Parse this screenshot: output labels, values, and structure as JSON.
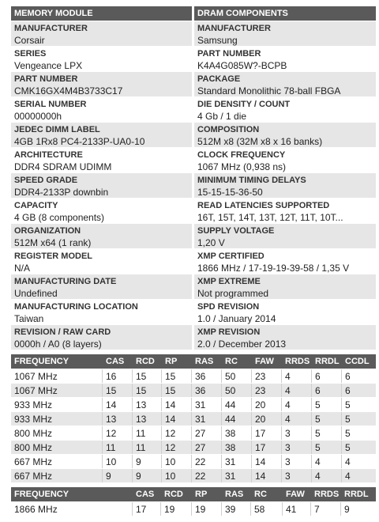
{
  "specs": {
    "left": {
      "title": "MEMORY MODULE",
      "items": [
        {
          "label": "MANUFACTURER",
          "value": "Corsair"
        },
        {
          "label": "SERIES",
          "value": "Vengeance LPX"
        },
        {
          "label": "PART NUMBER",
          "value": "CMK16GX4M4B3733C17"
        },
        {
          "label": "SERIAL NUMBER",
          "value": "00000000h"
        },
        {
          "label": "JEDEC DIMM LABEL",
          "value": "4GB 1Rx8 PC4-2133P-UA0-10"
        },
        {
          "label": "ARCHITECTURE",
          "value": "DDR4 SDRAM UDIMM"
        },
        {
          "label": "SPEED GRADE",
          "value": "DDR4-2133P downbin"
        },
        {
          "label": "CAPACITY",
          "value": "4 GB (8 components)"
        },
        {
          "label": "ORGANIZATION",
          "value": "512M x64 (1 rank)"
        },
        {
          "label": "REGISTER MODEL",
          "value": "N/A"
        },
        {
          "label": "MANUFACTURING DATE",
          "value": "Undefined"
        },
        {
          "label": "MANUFACTURING LOCATION",
          "value": "Taiwan"
        },
        {
          "label": "REVISION / RAW CARD",
          "value": "0000h / A0 (8 layers)"
        }
      ]
    },
    "right": {
      "title": "DRAM COMPONENTS",
      "items": [
        {
          "label": "MANUFACTURER",
          "value": "Samsung"
        },
        {
          "label": "PART NUMBER",
          "value": "K4A4G085W?-BCPB"
        },
        {
          "label": "PACKAGE",
          "value": "Standard Monolithic 78-ball FBGA"
        },
        {
          "label": "DIE DENSITY / COUNT",
          "value": "4 Gb / 1 die"
        },
        {
          "label": "COMPOSITION",
          "value": "512M x8 (32M x8 x 16 banks)"
        },
        {
          "label": "CLOCK FREQUENCY",
          "value": "1067 MHz (0,938 ns)"
        },
        {
          "label": "MINIMUM TIMING DELAYS",
          "value": "15-15-15-36-50"
        },
        {
          "label": "READ LATENCIES SUPPORTED",
          "value": "16T, 15T, 14T, 13T, 12T, 11T, 10T..."
        },
        {
          "label": "SUPPLY VOLTAGE",
          "value": "1,20 V"
        },
        {
          "label": "XMP CERTIFIED",
          "value": "1866 MHz / 17-19-19-39-58 / 1,35 V"
        },
        {
          "label": "XMP EXTREME",
          "value": "Not programmed"
        },
        {
          "label": "SPD REVISION",
          "value": "1.0 / January 2014"
        },
        {
          "label": "XMP REVISION",
          "value": "2.0 / December 2013"
        }
      ]
    }
  },
  "timings": {
    "headers": [
      "FREQUENCY",
      "CAS",
      "RCD",
      "RP",
      "RAS",
      "RC",
      "FAW",
      "RRDS",
      "RRDL",
      "CCDL"
    ],
    "rows": [
      [
        "1067 MHz",
        16,
        15,
        15,
        36,
        50,
        23,
        4,
        6,
        6
      ],
      [
        "1067 MHz",
        15,
        15,
        15,
        36,
        50,
        23,
        4,
        6,
        6
      ],
      [
        "933 MHz",
        14,
        13,
        14,
        31,
        44,
        20,
        4,
        5,
        5
      ],
      [
        "933 MHz",
        13,
        13,
        14,
        31,
        44,
        20,
        4,
        5,
        5
      ],
      [
        "800 MHz",
        12,
        11,
        12,
        27,
        38,
        17,
        3,
        5,
        5
      ],
      [
        "800 MHz",
        11,
        11,
        12,
        27,
        38,
        17,
        3,
        5,
        5
      ],
      [
        "667 MHz",
        10,
        9,
        10,
        22,
        31,
        14,
        3,
        4,
        4
      ],
      [
        "667 MHz",
        9,
        9,
        10,
        22,
        31,
        14,
        3,
        4,
        4
      ]
    ]
  },
  "xmp_timings": {
    "headers": [
      "FREQUENCY",
      "CAS",
      "RCD",
      "RP",
      "RAS",
      "RC",
      "FAW",
      "RRDS",
      "RRDL"
    ],
    "rows": [
      [
        "1866 MHz",
        17,
        19,
        19,
        39,
        58,
        41,
        7,
        9
      ]
    ]
  }
}
